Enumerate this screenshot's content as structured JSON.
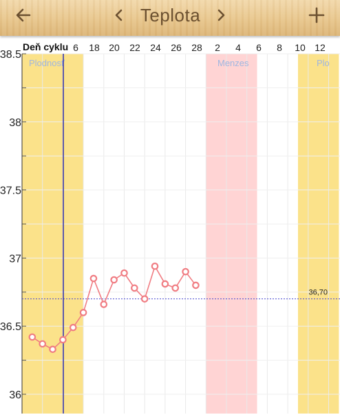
{
  "header": {
    "title": "Teplota",
    "back_icon": "arrow-left-icon",
    "prev_icon": "chevron-left-icon",
    "next_icon": "chevron-right-icon",
    "add_icon": "plus-icon"
  },
  "chart_data": {
    "type": "line",
    "xlabel": "Deň cyklu",
    "x_tick_labels": [
      "6",
      "18",
      "20",
      "22",
      "24",
      "26",
      "28",
      "2",
      "4",
      "6",
      "8",
      "10",
      "12"
    ],
    "ylim": [
      36,
      38.5
    ],
    "y_tick_labels": [
      "38.5",
      "38",
      "37.5",
      "37",
      "36.5",
      "36"
    ],
    "series": [
      {
        "color": "#f07c82",
        "values": [
          36.42,
          36.37,
          36.33,
          36.4,
          36.49,
          36.6,
          36.85,
          36.66,
          36.84,
          36.89,
          36.78,
          36.7,
          36.94,
          36.81,
          36.78,
          36.9,
          36.8
        ]
      }
    ],
    "reference_line": {
      "value": 36.7,
      "label": "36,70",
      "color": "#4a4ad0"
    },
    "bands": [
      {
        "label": "Plodnosť",
        "color": "#fbe28a"
      },
      {
        "label": "Menzes",
        "color": "#ffd4d4"
      },
      {
        "label": "Plo",
        "color": "#fbe28a"
      }
    ],
    "today_line_color": "#2a2aa8",
    "grid": true
  }
}
